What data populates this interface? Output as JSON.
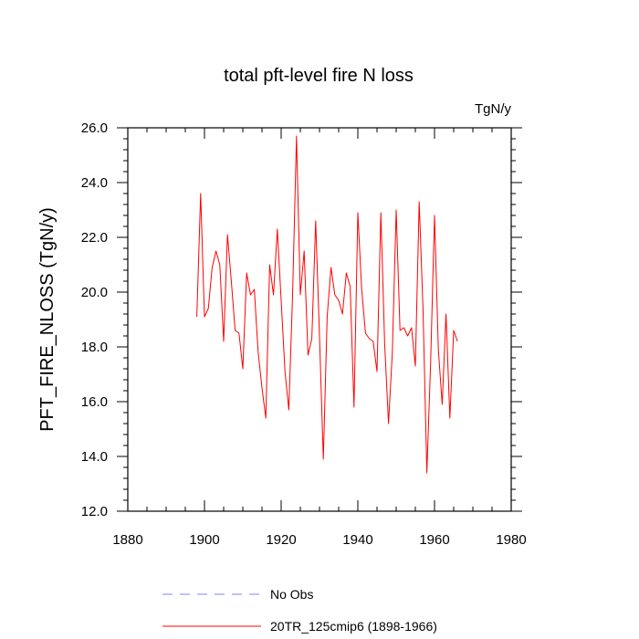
{
  "chart_data": {
    "type": "line",
    "title": "total pft-level fire N loss",
    "units": "TgN/y",
    "ylabel": "PFT_FIRE_NLOSS  (TgN/y)",
    "xlabel": "",
    "xlim": [
      1880,
      1980
    ],
    "ylim": [
      12.0,
      26.0
    ],
    "x_ticks": [
      1880,
      1900,
      1920,
      1940,
      1960,
      1980
    ],
    "x_tick_labels": [
      "1880",
      "1900",
      "1920",
      "1940",
      "1960",
      "1980"
    ],
    "y_ticks": [
      12,
      14,
      16,
      18,
      20,
      22,
      24,
      26
    ],
    "y_tick_labels": [
      "12.0",
      "14.0",
      "16.0",
      "18.0",
      "20.0",
      "22.0",
      "24.0",
      "26.0"
    ],
    "grid": false,
    "series": [
      {
        "name": "20TR_125cmip6 (1898-1966)",
        "color": "#ff0000",
        "dash": "solid",
        "x": [
          1898,
          1899,
          1900,
          1901,
          1902,
          1903,
          1904,
          1905,
          1906,
          1907,
          1908,
          1909,
          1910,
          1911,
          1912,
          1913,
          1914,
          1915,
          1916,
          1917,
          1918,
          1919,
          1920,
          1921,
          1922,
          1923,
          1924,
          1925,
          1926,
          1927,
          1928,
          1929,
          1930,
          1931,
          1932,
          1933,
          1934,
          1935,
          1936,
          1937,
          1938,
          1939,
          1940,
          1941,
          1942,
          1943,
          1944,
          1945,
          1946,
          1947,
          1948,
          1949,
          1950,
          1951,
          1952,
          1953,
          1954,
          1955,
          1956,
          1957,
          1958,
          1959,
          1960,
          1961,
          1962,
          1963,
          1964,
          1965,
          1966
        ],
        "values": [
          19.1,
          23.6,
          19.1,
          19.4,
          20.9,
          21.5,
          21.0,
          18.2,
          22.1,
          20.4,
          18.6,
          18.5,
          17.2,
          20.7,
          19.9,
          20.1,
          17.8,
          16.5,
          15.4,
          21.0,
          19.9,
          22.3,
          19.7,
          17.1,
          15.7,
          20.0,
          25.7,
          19.9,
          21.5,
          17.7,
          18.3,
          22.6,
          18.4,
          13.9,
          19.1,
          20.9,
          19.9,
          19.7,
          19.2,
          20.7,
          20.2,
          15.8,
          22.9,
          20.1,
          18.5,
          18.3,
          18.2,
          17.1,
          22.9,
          18.1,
          15.2,
          17.8,
          23.0,
          18.6,
          18.7,
          18.4,
          18.7,
          17.3,
          23.3,
          19.4,
          13.4,
          17.5,
          22.8,
          17.9,
          15.9,
          19.2,
          15.4,
          18.6,
          18.2
        ]
      }
    ],
    "legend": [
      {
        "label": "No Obs",
        "color": "#8080ff",
        "dash": "dashed"
      },
      {
        "label": "20TR_125cmip6 (1898-1966)",
        "color": "#ff0000",
        "dash": "solid"
      }
    ],
    "legend_position": "bottom-left"
  }
}
